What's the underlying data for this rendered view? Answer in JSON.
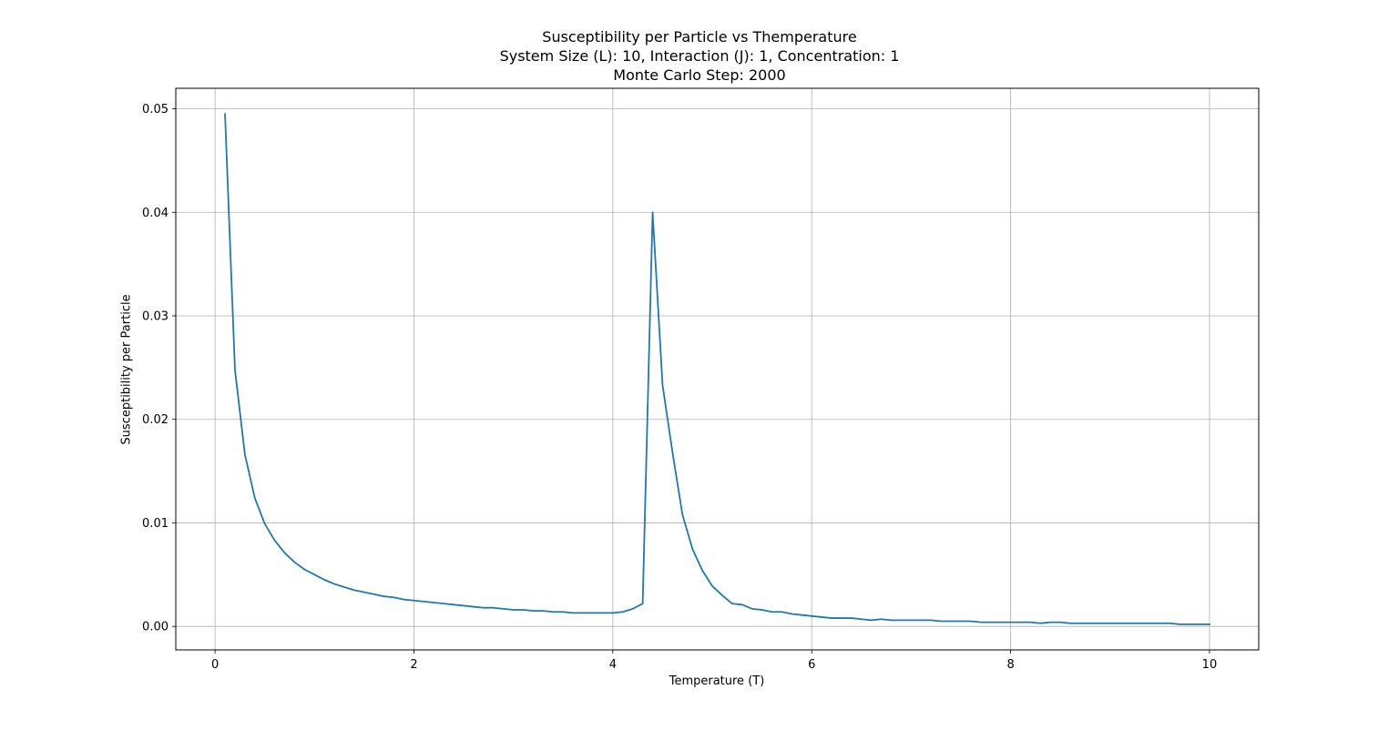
{
  "chart_data": {
    "type": "line",
    "title": [
      "Susceptibility per Particle vs Themperature",
      "System Size (L): 10, Interaction (J): 1, Concentration: 1",
      "Monte Carlo Step: 2000"
    ],
    "xlabel": "Temperature (T)",
    "ylabel": "Susceptibility per Particle",
    "xlim": [
      -0.395,
      10.495
    ],
    "ylim": [
      -0.00227,
      0.05198
    ],
    "xticks": [
      0,
      2,
      4,
      6,
      8,
      10
    ],
    "xtick_labels": [
      "0",
      "2",
      "4",
      "6",
      "8",
      "10"
    ],
    "yticks": [
      0.0,
      0.01,
      0.02,
      0.03,
      0.04,
      0.05
    ],
    "ytick_labels": [
      "0.00",
      "0.01",
      "0.02",
      "0.03",
      "0.04",
      "0.05"
    ],
    "grid": true,
    "line_color": "#1f77b4",
    "series": [
      {
        "x": [
          0.1,
          0.2,
          0.3,
          0.4,
          0.5,
          0.6,
          0.7,
          0.8,
          0.9,
          1.0,
          1.1,
          1.2,
          1.3,
          1.4,
          1.5,
          1.6,
          1.7,
          1.8,
          1.9,
          2.0,
          2.1,
          2.2,
          2.3,
          2.4,
          2.5,
          2.6,
          2.7,
          2.8,
          2.9,
          3.0,
          3.1,
          3.2,
          3.3,
          3.4,
          3.5,
          3.6,
          3.7,
          3.8,
          3.9,
          4.0,
          4.1,
          4.2,
          4.3,
          4.4,
          4.5,
          4.6,
          4.7,
          4.8,
          4.9,
          5.0,
          5.1,
          5.2,
          5.3,
          5.4,
          5.5,
          5.6,
          5.7,
          5.8,
          5.9,
          6.0,
          6.1,
          6.2,
          6.3,
          6.4,
          6.5,
          6.6,
          6.7,
          6.8,
          6.9,
          7.0,
          7.1,
          7.2,
          7.3,
          7.4,
          7.5,
          7.6,
          7.7,
          7.8,
          7.9,
          8.0,
          8.1,
          8.2,
          8.3,
          8.4,
          8.5,
          8.6,
          8.7,
          8.8,
          8.9,
          9.0,
          9.1,
          9.2,
          9.3,
          9.4,
          9.5,
          9.6,
          9.7,
          9.8,
          9.9,
          10.0
        ],
        "values": [
          0.0495,
          0.0248,
          0.0166,
          0.0124,
          0.0099,
          0.0083,
          0.0071,
          0.0062,
          0.0055,
          0.005,
          0.0045,
          0.0041,
          0.0038,
          0.0035,
          0.0033,
          0.0031,
          0.0029,
          0.0028,
          0.0026,
          0.0025,
          0.0024,
          0.0023,
          0.0022,
          0.0021,
          0.002,
          0.0019,
          0.0018,
          0.0018,
          0.0017,
          0.0016,
          0.0016,
          0.0015,
          0.0015,
          0.0014,
          0.0014,
          0.0013,
          0.0013,
          0.0013,
          0.0013,
          0.0013,
          0.0014,
          0.0017,
          0.0022,
          0.04,
          0.0233,
          0.0168,
          0.0108,
          0.0075,
          0.0054,
          0.0039,
          0.003,
          0.0022,
          0.0021,
          0.0017,
          0.0016,
          0.0014,
          0.0014,
          0.0012,
          0.0011,
          0.001,
          0.0009,
          0.0008,
          0.0008,
          0.0008,
          0.0007,
          0.0006,
          0.0007,
          0.0006,
          0.0006,
          0.0006,
          0.0006,
          0.0006,
          0.0005,
          0.0005,
          0.0005,
          0.0005,
          0.0004,
          0.0004,
          0.0004,
          0.0004,
          0.0004,
          0.0004,
          0.0003,
          0.0004,
          0.0004,
          0.0003,
          0.0003,
          0.0003,
          0.0003,
          0.0003,
          0.0003,
          0.0003,
          0.0003,
          0.0003,
          0.0003,
          0.0003,
          0.0002,
          0.0002,
          0.0002,
          0.0002
        ]
      }
    ]
  }
}
